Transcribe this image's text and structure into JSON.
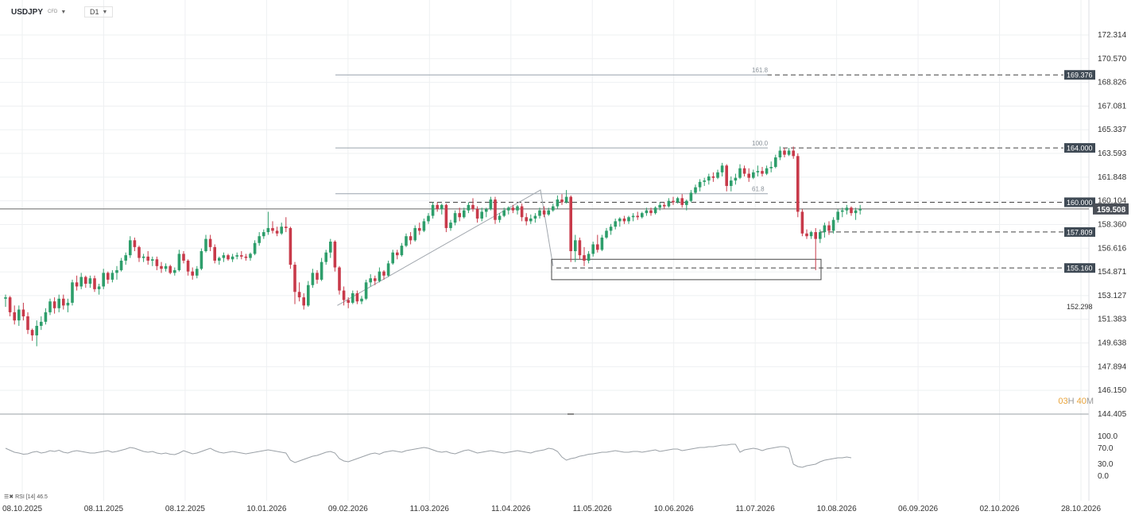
{
  "header": {
    "symbol": "USDJPY",
    "symbol_tag": "CFD",
    "timeframe": "D1"
  },
  "timer": {
    "prefix": "03",
    "h": "H",
    "mid": " 40",
    "m": "M"
  },
  "rsi_label": "RSI [14] 46.5",
  "colors": {
    "up": "#2e9e6b",
    "down": "#c83a4a",
    "grid": "#eef0f2",
    "axis": "#333333",
    "current": "#4a4f57",
    "level": "#3f4a55"
  },
  "chart_data": {
    "type": "candlestick",
    "x_axis": {
      "labels": [
        "08.10.2025",
        "08.11.2025",
        "08.12.2025",
        "10.01.2026",
        "09.02.2026",
        "11.03.2026",
        "11.04.2026",
        "11.05.2026",
        "10.06.2026",
        "11.07.2026",
        "10.08.2026",
        "06.09.2026",
        "02.10.2026",
        "28.10.2026"
      ]
    },
    "y_axis": {
      "ticks": [
        "172.314",
        "170.570",
        "168.826",
        "167.081",
        "165.337",
        "163.593",
        "161.848",
        "160.104",
        "158.360",
        "156.616",
        "154.871",
        "153.127",
        "151.383",
        "149.638",
        "147.894",
        "146.150",
        "144.405"
      ],
      "range": [
        144.405,
        172.314
      ]
    },
    "current_price": "159.508",
    "ohlc_bars": [
      [
        152.9,
        153.2,
        152.3,
        153.0
      ],
      [
        153.0,
        153.1,
        151.6,
        151.9
      ],
      [
        151.9,
        152.4,
        151.0,
        151.3
      ],
      [
        151.3,
        152.4,
        150.9,
        152.1
      ],
      [
        152.1,
        152.6,
        151.3,
        151.6
      ],
      [
        151.6,
        151.9,
        150.3,
        150.6
      ],
      [
        150.6,
        150.7,
        149.8,
        150.2
      ],
      [
        150.2,
        151.3,
        149.4,
        150.9
      ],
      [
        150.9,
        151.6,
        150.6,
        151.2
      ],
      [
        151.2,
        152.2,
        151.0,
        151.9
      ],
      [
        151.9,
        152.9,
        151.7,
        152.7
      ],
      [
        152.7,
        153.0,
        151.8,
        152.2
      ],
      [
        152.2,
        153.2,
        151.9,
        152.9
      ],
      [
        152.9,
        153.2,
        152.1,
        152.4
      ],
      [
        152.4,
        152.9,
        151.9,
        152.6
      ],
      [
        152.6,
        154.3,
        152.4,
        154.1
      ],
      [
        154.1,
        154.6,
        153.5,
        153.8
      ],
      [
        153.8,
        154.8,
        153.6,
        154.5
      ],
      [
        154.5,
        154.6,
        153.7,
        154.0
      ],
      [
        154.0,
        154.6,
        153.7,
        154.4
      ],
      [
        154.4,
        154.6,
        153.4,
        153.6
      ],
      [
        153.6,
        154.0,
        153.2,
        153.8
      ],
      [
        153.8,
        155.1,
        153.6,
        154.8
      ],
      [
        154.8,
        154.9,
        154.0,
        154.3
      ],
      [
        154.3,
        155.0,
        154.1,
        154.8
      ],
      [
        154.8,
        155.3,
        154.3,
        155.0
      ],
      [
        155.0,
        155.9,
        154.9,
        155.7
      ],
      [
        155.7,
        156.3,
        155.4,
        156.1
      ],
      [
        156.1,
        157.5,
        155.9,
        157.2
      ],
      [
        157.2,
        157.4,
        156.4,
        156.7
      ],
      [
        156.7,
        156.8,
        155.6,
        155.9
      ],
      [
        155.9,
        156.2,
        155.6,
        156.0
      ],
      [
        156.0,
        156.4,
        155.4,
        155.7
      ],
      [
        155.7,
        156.0,
        155.3,
        155.8
      ],
      [
        155.8,
        156.0,
        155.0,
        155.3
      ],
      [
        155.3,
        155.6,
        154.8,
        155.1
      ],
      [
        155.1,
        155.5,
        154.9,
        155.3
      ],
      [
        155.3,
        155.4,
        154.7,
        154.8
      ],
      [
        154.8,
        155.2,
        154.6,
        155.0
      ],
      [
        155.0,
        156.5,
        154.9,
        156.2
      ],
      [
        156.2,
        156.4,
        155.5,
        155.7
      ],
      [
        155.7,
        155.8,
        154.6,
        154.9
      ],
      [
        154.9,
        155.2,
        154.3,
        154.6
      ],
      [
        154.6,
        155.3,
        154.4,
        155.1
      ],
      [
        155.1,
        156.6,
        155.0,
        156.4
      ],
      [
        156.4,
        157.6,
        156.3,
        157.3
      ],
      [
        157.3,
        157.6,
        156.4,
        156.7
      ],
      [
        156.7,
        156.9,
        155.5,
        155.7
      ],
      [
        155.7,
        156.0,
        155.4,
        155.9
      ],
      [
        155.9,
        156.3,
        155.6,
        156.1
      ],
      [
        156.1,
        156.2,
        155.7,
        155.8
      ],
      [
        155.8,
        156.2,
        155.6,
        156.0
      ],
      [
        156.0,
        156.3,
        155.8,
        156.1
      ],
      [
        156.1,
        156.4,
        155.8,
        156.0
      ],
      [
        156.0,
        156.2,
        155.7,
        155.9
      ],
      [
        155.9,
        156.3,
        155.7,
        156.2
      ],
      [
        156.2,
        157.2,
        156.1,
        157.0
      ],
      [
        157.0,
        157.8,
        156.8,
        157.5
      ],
      [
        157.5,
        158.0,
        157.3,
        157.8
      ],
      [
        157.8,
        159.3,
        157.6,
        158.1
      ],
      [
        158.1,
        158.6,
        157.7,
        157.9
      ],
      [
        157.9,
        158.2,
        157.5,
        157.7
      ],
      [
        157.7,
        158.5,
        157.6,
        158.2
      ],
      [
        158.2,
        158.9,
        157.8,
        158.1
      ],
      [
        158.1,
        158.2,
        155.1,
        155.4
      ],
      [
        155.4,
        155.6,
        152.5,
        153.4
      ],
      [
        153.4,
        154.1,
        152.7,
        153.0
      ],
      [
        153.0,
        153.3,
        152.1,
        152.4
      ],
      [
        152.4,
        154.2,
        152.3,
        153.9
      ],
      [
        153.9,
        155.1,
        153.7,
        154.8
      ],
      [
        154.8,
        155.0,
        154.0,
        154.3
      ],
      [
        154.3,
        155.9,
        154.2,
        155.6
      ],
      [
        155.6,
        156.5,
        155.4,
        156.3
      ],
      [
        156.3,
        157.3,
        155.9,
        157.1
      ],
      [
        157.1,
        157.2,
        154.9,
        155.2
      ],
      [
        155.2,
        155.3,
        153.2,
        153.5
      ],
      [
        153.5,
        153.8,
        152.4,
        152.8
      ],
      [
        152.8,
        153.0,
        152.2,
        152.6
      ],
      [
        152.6,
        153.5,
        152.5,
        153.3
      ],
      [
        153.3,
        153.5,
        152.5,
        152.7
      ],
      [
        152.7,
        153.1,
        152.5,
        152.9
      ],
      [
        152.9,
        154.3,
        152.8,
        154.1
      ],
      [
        154.1,
        154.7,
        153.8,
        154.4
      ],
      [
        154.4,
        154.6,
        153.9,
        154.2
      ],
      [
        154.2,
        155.2,
        154.1,
        154.9
      ],
      [
        154.9,
        155.0,
        154.3,
        154.6
      ],
      [
        154.6,
        155.7,
        154.5,
        155.5
      ],
      [
        155.5,
        156.5,
        155.4,
        156.3
      ],
      [
        156.3,
        156.5,
        155.8,
        156.1
      ],
      [
        156.1,
        157.0,
        156.0,
        156.8
      ],
      [
        156.8,
        157.7,
        156.7,
        157.5
      ],
      [
        157.5,
        157.8,
        156.9,
        157.2
      ],
      [
        157.2,
        158.3,
        157.1,
        158.1
      ],
      [
        158.1,
        158.5,
        157.6,
        157.9
      ],
      [
        157.9,
        158.8,
        157.8,
        158.6
      ],
      [
        158.6,
        159.2,
        158.4,
        159.0
      ],
      [
        159.0,
        160.0,
        158.8,
        159.8
      ],
      [
        159.8,
        160.0,
        159.3,
        159.5
      ],
      [
        159.5,
        159.9,
        159.1,
        159.8
      ],
      [
        159.8,
        159.9,
        157.8,
        158.1
      ],
      [
        158.1,
        158.7,
        157.9,
        158.5
      ],
      [
        158.5,
        159.4,
        158.3,
        159.2
      ],
      [
        159.2,
        159.6,
        158.6,
        158.9
      ],
      [
        158.9,
        159.6,
        158.8,
        159.4
      ],
      [
        159.4,
        160.0,
        159.2,
        159.8
      ],
      [
        159.8,
        160.3,
        159.3,
        159.5
      ],
      [
        159.5,
        159.7,
        158.5,
        158.8
      ],
      [
        158.8,
        159.6,
        158.6,
        159.3
      ],
      [
        159.3,
        159.6,
        158.9,
        159.5
      ],
      [
        159.5,
        160.4,
        159.4,
        160.2
      ],
      [
        160.2,
        160.4,
        158.4,
        158.7
      ],
      [
        158.7,
        159.2,
        158.5,
        159.0
      ],
      [
        159.0,
        159.6,
        158.9,
        159.4
      ],
      [
        159.4,
        159.7,
        159.1,
        159.6
      ],
      [
        159.6,
        159.8,
        159.2,
        159.4
      ],
      [
        159.4,
        159.8,
        159.1,
        159.7
      ],
      [
        159.7,
        159.9,
        158.6,
        158.9
      ],
      [
        158.9,
        159.2,
        158.3,
        158.6
      ],
      [
        158.6,
        159.1,
        158.4,
        158.8
      ],
      [
        158.8,
        159.2,
        158.5,
        159.0
      ],
      [
        159.0,
        159.6,
        158.8,
        159.4
      ],
      [
        159.4,
        159.7,
        158.9,
        159.1
      ],
      [
        159.1,
        159.6,
        159.0,
        159.4
      ],
      [
        159.4,
        159.9,
        159.3,
        159.7
      ],
      [
        159.7,
        160.5,
        159.5,
        160.2
      ],
      [
        160.2,
        160.6,
        159.8,
        160.0
      ],
      [
        160.0,
        160.9,
        159.9,
        160.4
      ],
      [
        160.4,
        160.5,
        155.6,
        156.4
      ],
      [
        156.4,
        157.6,
        155.6,
        157.2
      ],
      [
        157.2,
        157.4,
        155.8,
        156.1
      ],
      [
        156.1,
        156.7,
        155.3,
        155.7
      ],
      [
        155.7,
        156.4,
        155.5,
        156.2
      ],
      [
        156.2,
        157.1,
        156.0,
        156.9
      ],
      [
        156.9,
        157.6,
        156.3,
        156.5
      ],
      [
        156.5,
        157.6,
        156.4,
        157.4
      ],
      [
        157.4,
        158.1,
        157.3,
        157.9
      ],
      [
        157.9,
        158.4,
        157.6,
        158.2
      ],
      [
        158.2,
        158.8,
        158.0,
        158.6
      ],
      [
        158.6,
        158.9,
        158.2,
        158.8
      ],
      [
        158.8,
        159.0,
        158.4,
        158.6
      ],
      [
        158.6,
        159.0,
        158.4,
        158.9
      ],
      [
        158.9,
        159.2,
        158.6,
        159.0
      ],
      [
        159.0,
        159.3,
        158.7,
        158.9
      ],
      [
        158.9,
        159.3,
        158.8,
        159.2
      ],
      [
        159.2,
        159.6,
        159.0,
        159.4
      ],
      [
        159.4,
        159.6,
        159.0,
        159.2
      ],
      [
        159.2,
        159.7,
        159.1,
        159.6
      ],
      [
        159.6,
        160.0,
        159.4,
        159.8
      ],
      [
        159.8,
        160.0,
        159.5,
        159.7
      ],
      [
        159.7,
        160.3,
        159.6,
        160.1
      ],
      [
        160.1,
        160.4,
        159.8,
        160.0
      ],
      [
        160.0,
        160.4,
        159.9,
        160.3
      ],
      [
        160.3,
        160.6,
        159.6,
        159.8
      ],
      [
        159.8,
        160.2,
        159.4,
        160.1
      ],
      [
        160.1,
        160.9,
        160.0,
        160.7
      ],
      [
        160.7,
        161.3,
        160.6,
        161.1
      ],
      [
        161.1,
        161.7,
        160.8,
        161.5
      ],
      [
        161.5,
        161.8,
        161.2,
        161.6
      ],
      [
        161.6,
        162.1,
        161.3,
        161.9
      ],
      [
        161.9,
        162.2,
        161.5,
        161.8
      ],
      [
        161.8,
        162.4,
        161.7,
        162.2
      ],
      [
        162.2,
        162.9,
        161.9,
        162.7
      ],
      [
        162.7,
        162.8,
        160.8,
        161.2
      ],
      [
        161.2,
        161.9,
        160.8,
        161.6
      ],
      [
        161.6,
        162.1,
        161.3,
        161.8
      ],
      [
        161.8,
        162.8,
        161.7,
        162.5
      ],
      [
        162.5,
        162.7,
        161.9,
        162.1
      ],
      [
        162.1,
        162.5,
        161.5,
        161.8
      ],
      [
        161.8,
        162.4,
        161.7,
        162.2
      ],
      [
        162.2,
        162.7,
        161.9,
        162.3
      ],
      [
        162.3,
        162.6,
        161.9,
        162.1
      ],
      [
        162.1,
        162.7,
        162.0,
        162.5
      ],
      [
        162.5,
        163.0,
        162.2,
        162.6
      ],
      [
        162.6,
        163.5,
        162.5,
        163.3
      ],
      [
        163.3,
        164.1,
        163.1,
        163.8
      ],
      [
        163.8,
        164.0,
        163.3,
        163.5
      ],
      [
        163.5,
        164.0,
        163.4,
        163.8
      ],
      [
        163.8,
        164.1,
        163.2,
        163.4
      ],
      [
        163.4,
        163.6,
        158.9,
        159.3
      ],
      [
        159.3,
        159.5,
        157.5,
        157.7
      ],
      [
        157.7,
        158.0,
        157.3,
        157.5
      ],
      [
        157.5,
        157.9,
        157.3,
        157.8
      ],
      [
        157.8,
        158.1,
        155.0,
        157.3
      ],
      [
        157.3,
        158.0,
        157.0,
        157.8
      ],
      [
        157.8,
        158.5,
        157.4,
        158.3
      ],
      [
        158.3,
        158.6,
        157.6,
        157.9
      ],
      [
        157.9,
        158.9,
        157.7,
        158.7
      ],
      [
        158.7,
        159.5,
        158.5,
        159.3
      ],
      [
        159.3,
        159.6,
        158.9,
        159.4
      ],
      [
        159.4,
        159.8,
        159.1,
        159.6
      ],
      [
        159.6,
        159.7,
        159.0,
        159.2
      ],
      [
        159.2,
        159.6,
        158.7,
        159.4
      ],
      [
        159.4,
        159.8,
        159.1,
        159.5
      ]
    ],
    "horizontal_levels": [
      {
        "label": "169.376",
        "value": 169.376,
        "style": "dashed"
      },
      {
        "label": "164.000",
        "value": 164.0,
        "style": "dashed"
      },
      {
        "label": "160.000",
        "value": 160.0,
        "style": "dashed"
      },
      {
        "label": "157.809",
        "value": 157.809,
        "style": "dashed"
      },
      {
        "label": "155.160",
        "value": 155.16,
        "style": "dashed"
      }
    ],
    "free_label": {
      "text": "152.298",
      "value": 152.298
    },
    "fibonacci": [
      {
        "label": "161.8",
        "value": 169.376
      },
      {
        "label": "100.0",
        "value": 164.0
      },
      {
        "label": "61.8",
        "value": 160.63
      }
    ],
    "rsi": {
      "ticks": [
        "100.0",
        "70.0",
        "30.0",
        "0.0"
      ],
      "range": [
        0,
        100
      ],
      "values": [
        70,
        65,
        60,
        58,
        55,
        56,
        60,
        62,
        58,
        60,
        64,
        62,
        65,
        60,
        58,
        62,
        64,
        62,
        60,
        58,
        58,
        60,
        62,
        64,
        60,
        62,
        65,
        68,
        72,
        70,
        66,
        62,
        60,
        62,
        58,
        56,
        58,
        55,
        54,
        58,
        64,
        60,
        56,
        58,
        62,
        66,
        70,
        64,
        60,
        58,
        60,
        62,
        60,
        58,
        56,
        58,
        60,
        62,
        64,
        66,
        64,
        62,
        60,
        58,
        40,
        34,
        38,
        42,
        46,
        50,
        52,
        56,
        60,
        62,
        58,
        44,
        38,
        36,
        40,
        44,
        48,
        52,
        56,
        58,
        55,
        60,
        62,
        64,
        62,
        60,
        64,
        66,
        68,
        70,
        72,
        70,
        66,
        62,
        60,
        62,
        58,
        56,
        60,
        64,
        66,
        62,
        58,
        60,
        62,
        64,
        62,
        60,
        58,
        60,
        62,
        64,
        62,
        60,
        58,
        62,
        64,
        66,
        70,
        68,
        62,
        48,
        40,
        44,
        46,
        50,
        52,
        55,
        56,
        58,
        60,
        60,
        62,
        64,
        62,
        60,
        60,
        62,
        62,
        60,
        62,
        64,
        66,
        62,
        64,
        66,
        68,
        68,
        64,
        66,
        68,
        70,
        72,
        72,
        74,
        74,
        76,
        78,
        78,
        80,
        80,
        60,
        66,
        68,
        70,
        68,
        64,
        68,
        70,
        72,
        74,
        74,
        70,
        30,
        24,
        22,
        26,
        28,
        30,
        36,
        40,
        42,
        44,
        46,
        46,
        48,
        46
      ]
    }
  }
}
